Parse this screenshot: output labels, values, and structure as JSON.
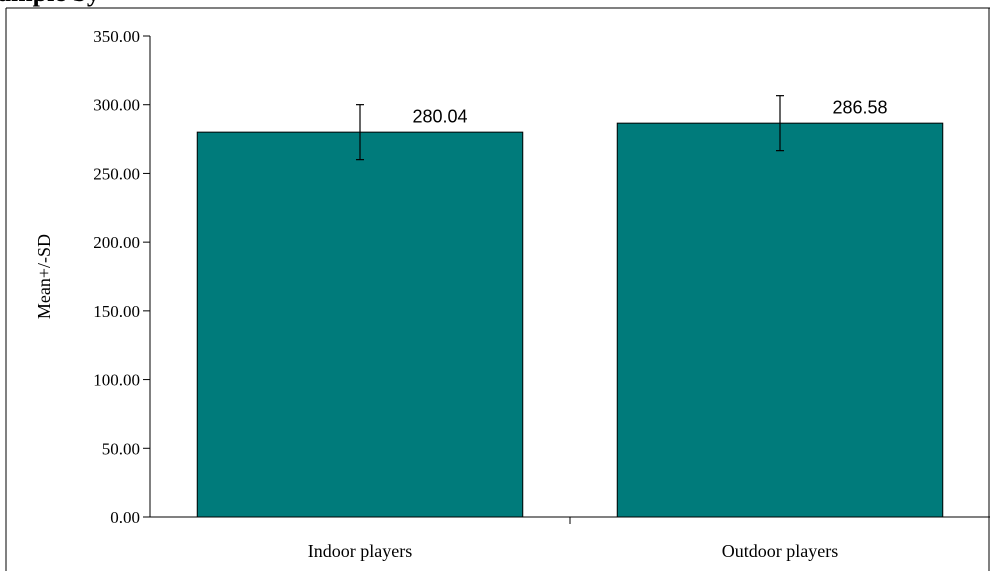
{
  "header_fragment": "ample by",
  "chart_data": {
    "type": "bar",
    "title": "",
    "xlabel": "",
    "ylabel": "Mean+/-SD",
    "ylim": [
      0,
      350
    ],
    "yticks": [
      0,
      50,
      100,
      150,
      200,
      250,
      300,
      350
    ],
    "ytick_labels": [
      "0.00",
      "50.00",
      "100.00",
      "150.00",
      "200.00",
      "250.00",
      "300.00",
      "350.00"
    ],
    "categories": [
      "Indoor players",
      "Outdoor players"
    ],
    "values": [
      280.04,
      286.58
    ],
    "error": [
      20,
      20
    ],
    "data_labels": [
      "280.04",
      "286.58"
    ],
    "bar_color": "#007B7B",
    "grid": false,
    "legend": "none"
  }
}
